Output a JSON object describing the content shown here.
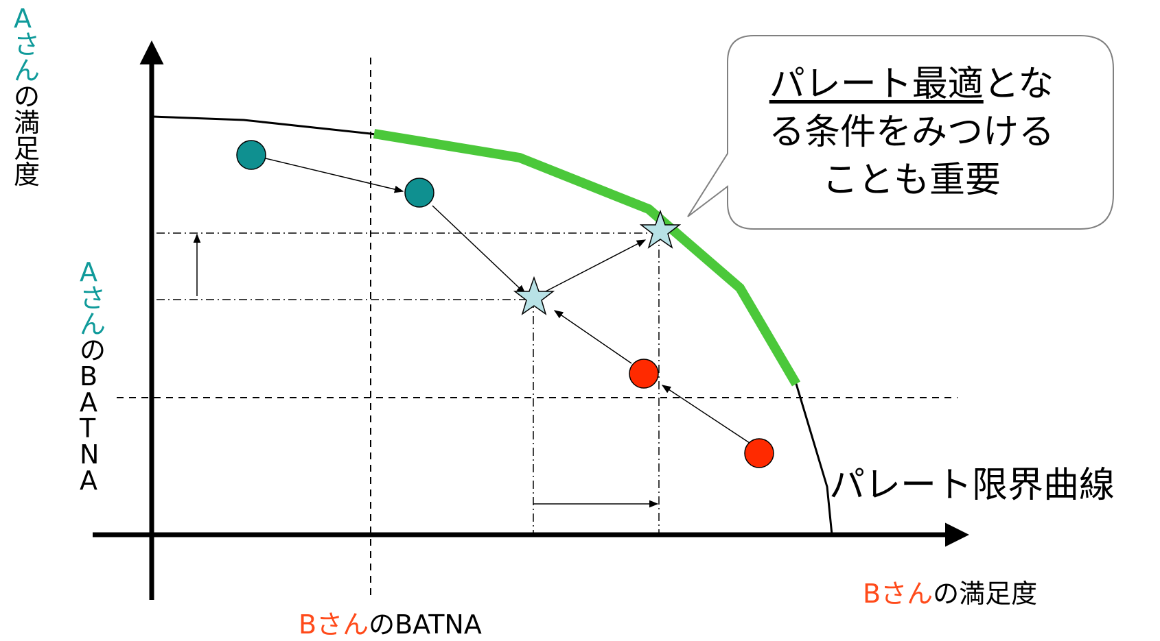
{
  "y_axis_label": {
    "part1": "Aさん",
    "part2": "の満足度"
  },
  "x_axis_label": {
    "part1": "Bさん",
    "part2": "の満足度"
  },
  "a_batna_label": {
    "part1": "Aさん",
    "part2": "のBATNA"
  },
  "b_batna_label": {
    "part1": "Bさん",
    "part2": "のBATNA"
  },
  "callout": {
    "line1_underlined": "パレート最適",
    "line1_rest": "とな",
    "line2": "る条件をみつける",
    "line3": "ことも重要"
  },
  "curve_label": "パレート限界曲線",
  "colors": {
    "teal": "#0f9a9a",
    "red": "#ff4a1a",
    "pareto_green": "#4bc83a",
    "star_fill": "#b8e2e6",
    "teal_point": "#0f9090",
    "red_point": "#ff2a00"
  }
}
